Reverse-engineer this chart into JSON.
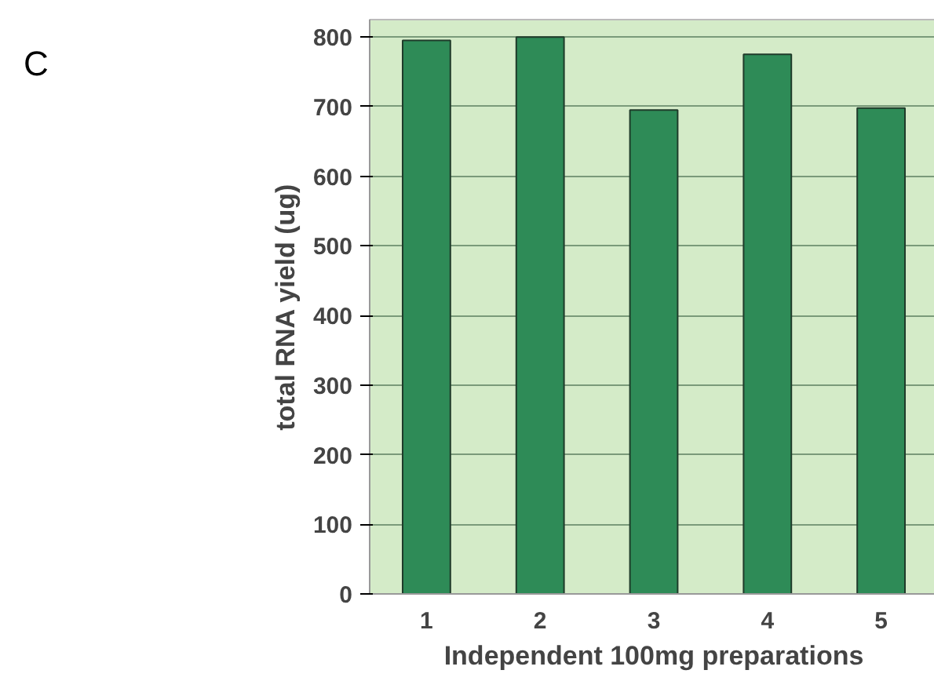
{
  "chart_data": {
    "type": "bar",
    "xlabel": "Independent 100mg preparations",
    "ylabel": "total RNA yield (ug)",
    "categories": [
      "1",
      "2",
      "3",
      "4",
      "5"
    ],
    "values": [
      795,
      800,
      695,
      775,
      698
    ],
    "color": "#2e8b57",
    "ylim": [
      0,
      825
    ],
    "yticks": [
      0,
      100,
      200,
      300,
      400,
      500,
      600,
      700,
      800
    ],
    "grid": "y",
    "annotations": [
      "C"
    ]
  }
}
